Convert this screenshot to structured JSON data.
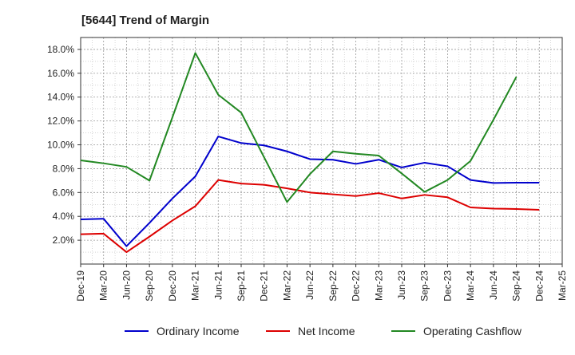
{
  "chart_data": {
    "type": "line",
    "title": "[5644]  Trend of Margin",
    "xlabel": "",
    "ylabel": "",
    "ylim": [
      0,
      19.0
    ],
    "yticks": [
      2.0,
      4.0,
      6.0,
      8.0,
      10.0,
      12.0,
      14.0,
      16.0,
      18.0
    ],
    "ytick_labels": [
      "2.0%",
      "4.0%",
      "6.0%",
      "8.0%",
      "10.0%",
      "12.0%",
      "14.0%",
      "16.0%",
      "18.0%"
    ],
    "categories": [
      "Dec-19",
      "Mar-20",
      "Jun-20",
      "Sep-20",
      "Dec-20",
      "Mar-21",
      "Jun-21",
      "Sep-21",
      "Dec-21",
      "Mar-22",
      "Jun-22",
      "Sep-22",
      "Dec-22",
      "Mar-23",
      "Jun-23",
      "Sep-23",
      "Dec-23",
      "Mar-24",
      "Jun-24",
      "Sep-24",
      "Dec-24",
      "Mar-25"
    ],
    "grid": true,
    "legend_position": "bottom",
    "series": [
      {
        "name": "Ordinary Income",
        "color": "#0000cc",
        "values": [
          3.75,
          3.8,
          1.5,
          3.45,
          5.5,
          7.35,
          10.7,
          10.15,
          9.95,
          9.45,
          8.8,
          8.75,
          8.4,
          8.75,
          8.1,
          8.5,
          8.2,
          7.05,
          6.8,
          6.82,
          6.82,
          null
        ]
      },
      {
        "name": "Net Income",
        "color": "#dd0000",
        "values": [
          2.5,
          2.55,
          1.0,
          2.3,
          3.65,
          4.85,
          7.05,
          6.75,
          6.65,
          6.35,
          6.0,
          5.85,
          5.7,
          5.95,
          5.5,
          5.8,
          5.6,
          4.75,
          4.65,
          4.62,
          4.55,
          null
        ]
      },
      {
        "name": "Operating Cashflow",
        "color": "#228822",
        "values": [
          8.7,
          8.45,
          8.15,
          7.0,
          12.3,
          17.7,
          14.2,
          12.7,
          8.95,
          5.2,
          7.55,
          9.45,
          9.25,
          9.1,
          7.6,
          6.05,
          7.05,
          8.65,
          12.1,
          15.7,
          null,
          null
        ]
      }
    ]
  }
}
